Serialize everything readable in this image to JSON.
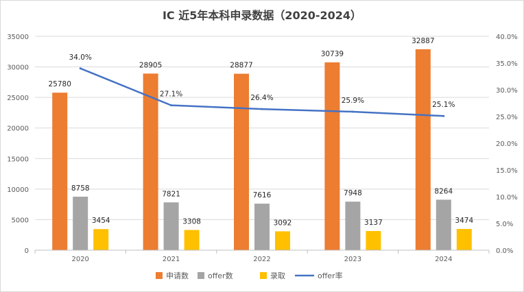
{
  "chart_data": {
    "type": "bar",
    "title": "IC 近5年本科申录数据（2020-2024）",
    "categories": [
      "2020",
      "2021",
      "2022",
      "2023",
      "2024"
    ],
    "series": [
      {
        "name": "申请数",
        "type": "bar",
        "axis": "left",
        "color": "#ED7D31",
        "values": [
          25780,
          28905,
          28877,
          30739,
          32887
        ],
        "labels": [
          "25780",
          "28905",
          "28877",
          "30739",
          "32887"
        ]
      },
      {
        "name": "offer数",
        "type": "bar",
        "axis": "left",
        "color": "#A5A5A5",
        "values": [
          8758,
          7821,
          7616,
          7948,
          8264
        ],
        "labels": [
          "8758",
          "7821",
          "7616",
          "7948",
          "8264"
        ]
      },
      {
        "name": "录取",
        "type": "bar",
        "axis": "left",
        "color": "#FFC000",
        "values": [
          3454,
          3308,
          3092,
          3137,
          3474
        ],
        "labels": [
          "3454",
          "3308",
          "3092",
          "3137",
          "3474"
        ]
      },
      {
        "name": "offer率",
        "type": "line",
        "axis": "right",
        "color": "#4472C4",
        "values": [
          34.0,
          27.1,
          26.4,
          25.9,
          25.1
        ],
        "labels": [
          "34.0%",
          "27.1%",
          "26.4%",
          "25.9%",
          "25.1%"
        ]
      }
    ],
    "y_left": {
      "min": 0,
      "max": 35000,
      "ticks": [
        "0",
        "5000",
        "10000",
        "15000",
        "20000",
        "25000",
        "30000",
        "35000"
      ]
    },
    "y_right": {
      "min": 0,
      "max": 40,
      "ticks": [
        "0.0%",
        "5.0%",
        "10.0%",
        "15.0%",
        "20.0%",
        "25.0%",
        "30.0%",
        "35.0%",
        "40.0%"
      ]
    },
    "grid": true,
    "legend_position": "bottom"
  }
}
